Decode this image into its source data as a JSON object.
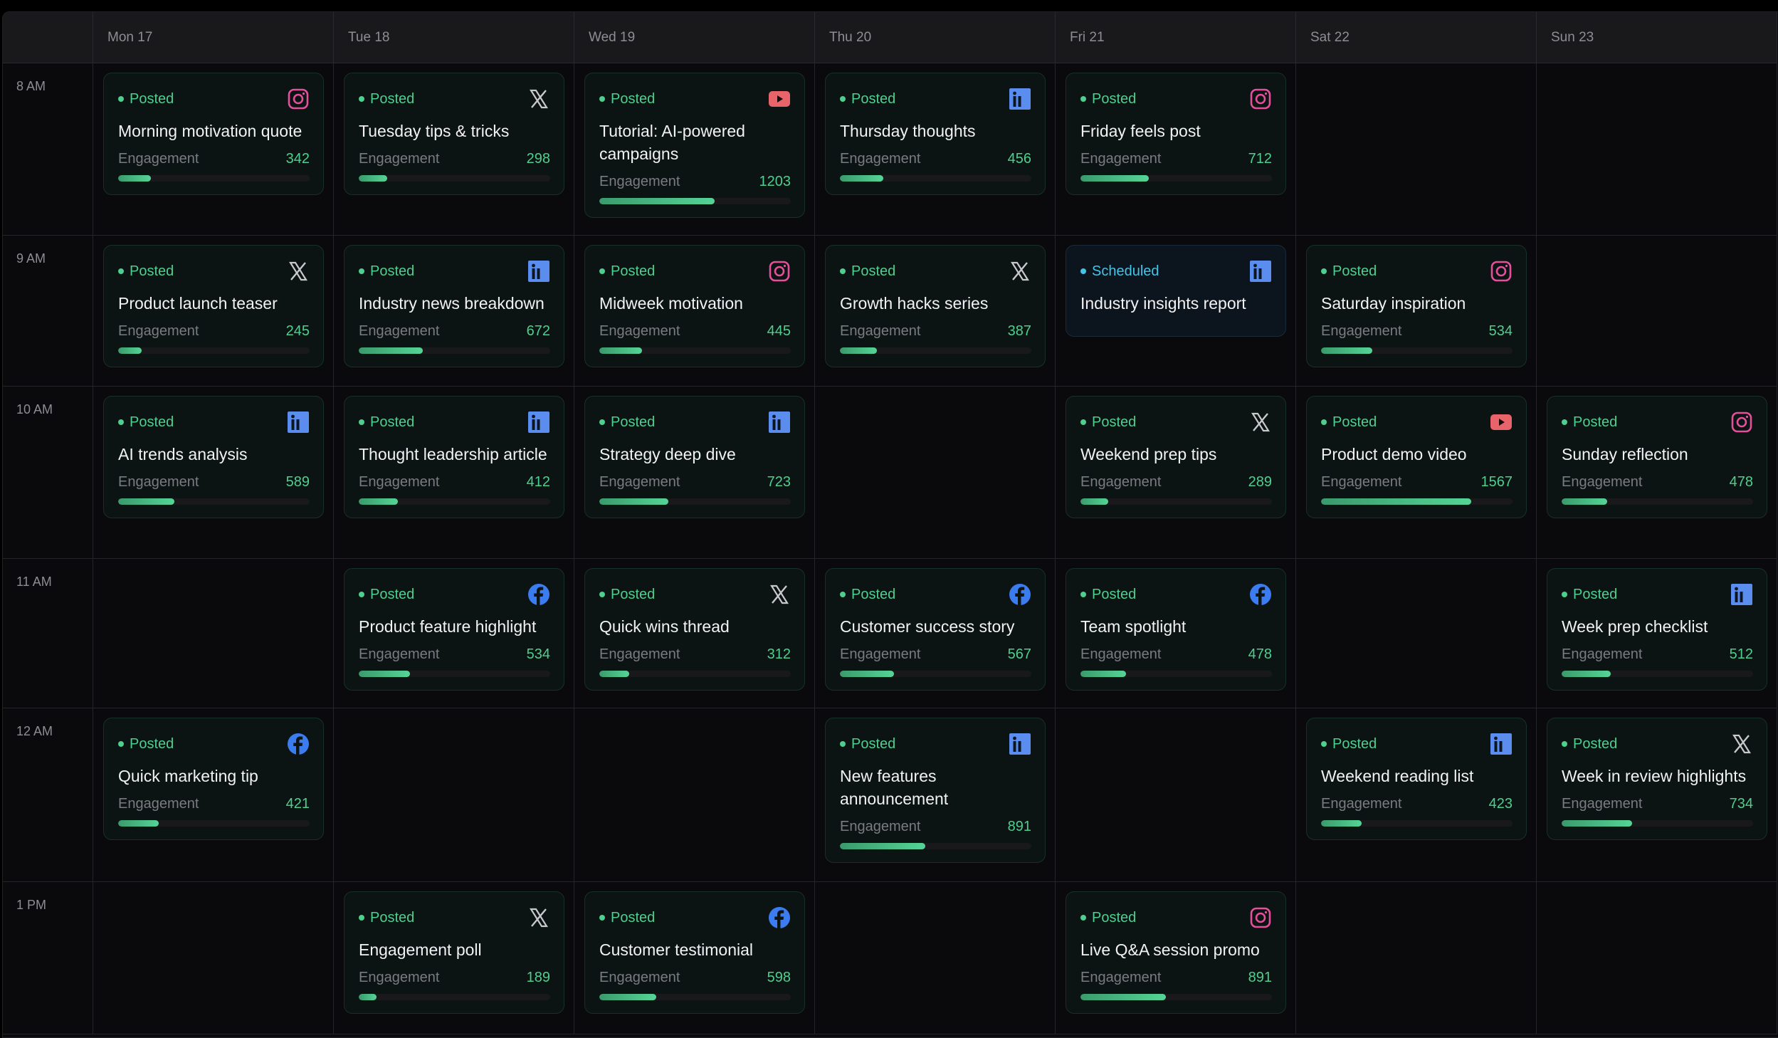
{
  "days": [
    "Mon 17",
    "Tue 18",
    "Wed 19",
    "Thu 20",
    "Fri 21",
    "Sat 22",
    "Sun 23"
  ],
  "engagement_label": "Engagement",
  "engagement_scale_max": 2000,
  "colors": {
    "posted": "#4fcf8f",
    "scheduled": "#43c4e8",
    "instagram": "#e4509a",
    "x": "#c9c9cc",
    "youtube": "#e8636a",
    "linkedin": "#5b8def",
    "facebook": "#3b7cf0"
  },
  "rows": [
    {
      "time": "8 AM",
      "cells": [
        {
          "status": "Posted",
          "platform": "instagram",
          "title": "Morning motivation quote",
          "engagement": 342
        },
        {
          "status": "Posted",
          "platform": "x",
          "title": "Tuesday tips & tricks",
          "engagement": 298
        },
        {
          "status": "Posted",
          "platform": "youtube",
          "title": "Tutorial: AI-powered campaigns",
          "engagement": 1203
        },
        {
          "status": "Posted",
          "platform": "linkedin",
          "title": "Thursday thoughts",
          "engagement": 456
        },
        {
          "status": "Posted",
          "platform": "instagram",
          "title": "Friday feels post",
          "engagement": 712
        },
        null,
        null
      ]
    },
    {
      "time": "9 AM",
      "cells": [
        {
          "status": "Posted",
          "platform": "x",
          "title": "Product launch teaser",
          "engagement": 245
        },
        {
          "status": "Posted",
          "platform": "linkedin",
          "title": "Industry news breakdown",
          "engagement": 672
        },
        {
          "status": "Posted",
          "platform": "instagram",
          "title": "Midweek motivation",
          "engagement": 445
        },
        {
          "status": "Posted",
          "platform": "x",
          "title": "Growth hacks series",
          "engagement": 387
        },
        {
          "status": "Scheduled",
          "platform": "linkedin",
          "title": "Industry insights report"
        },
        {
          "status": "Posted",
          "platform": "instagram",
          "title": "Saturday inspiration",
          "engagement": 534
        },
        null
      ]
    },
    {
      "time": "10 AM",
      "cells": [
        {
          "status": "Posted",
          "platform": "linkedin",
          "title": "AI trends analysis",
          "engagement": 589
        },
        {
          "status": "Posted",
          "platform": "linkedin",
          "title": "Thought leadership article",
          "engagement": 412
        },
        {
          "status": "Posted",
          "platform": "linkedin",
          "title": "Strategy deep dive",
          "engagement": 723
        },
        null,
        {
          "status": "Posted",
          "platform": "x",
          "title": "Weekend prep tips",
          "engagement": 289
        },
        {
          "status": "Posted",
          "platform": "youtube",
          "title": "Product demo video",
          "engagement": 1567
        },
        {
          "status": "Posted",
          "platform": "instagram",
          "title": "Sunday reflection",
          "engagement": 478
        }
      ]
    },
    {
      "time": "11 AM",
      "cells": [
        null,
        {
          "status": "Posted",
          "platform": "facebook",
          "title": "Product feature highlight",
          "engagement": 534
        },
        {
          "status": "Posted",
          "platform": "x",
          "title": "Quick wins thread",
          "engagement": 312
        },
        {
          "status": "Posted",
          "platform": "facebook",
          "title": "Customer success story",
          "engagement": 567
        },
        {
          "status": "Posted",
          "platform": "facebook",
          "title": "Team spotlight",
          "engagement": 478
        },
        null,
        {
          "status": "Posted",
          "platform": "linkedin",
          "title": "Week prep checklist",
          "engagement": 512
        }
      ]
    },
    {
      "time": "12 AM",
      "cells": [
        {
          "status": "Posted",
          "platform": "facebook",
          "title": "Quick marketing tip",
          "engagement": 421
        },
        null,
        null,
        {
          "status": "Posted",
          "platform": "linkedin",
          "title": "New features announcement",
          "engagement": 891
        },
        null,
        {
          "status": "Posted",
          "platform": "linkedin",
          "title": "Weekend reading list",
          "engagement": 423
        },
        {
          "status": "Posted",
          "platform": "x",
          "title": "Week in review highlights",
          "engagement": 734
        }
      ]
    },
    {
      "time": "1 PM",
      "cells": [
        null,
        {
          "status": "Posted",
          "platform": "x",
          "title": "Engagement poll",
          "engagement": 189
        },
        {
          "status": "Posted",
          "platform": "facebook",
          "title": "Customer testimonial",
          "engagement": 598
        },
        null,
        {
          "status": "Posted",
          "platform": "instagram",
          "title": "Live Q&A session promo",
          "engagement": 891
        },
        null,
        null
      ]
    }
  ]
}
